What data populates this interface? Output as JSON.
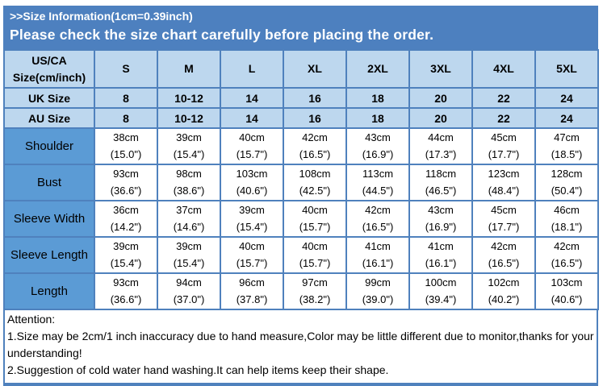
{
  "header": {
    "title": ">>Size Information(1cm=0.39inch)",
    "subtitle": "Please check the size chart carefully before placing the order."
  },
  "size_chart": {
    "corner_line1": "US/CA",
    "corner_line2": "Size(cm/inch)",
    "columns": [
      "S",
      "M",
      "L",
      "XL",
      "2XL",
      "3XL",
      "4XL",
      "5XL"
    ],
    "region_rows": [
      {
        "label": "UK Size",
        "values": [
          "8",
          "10-12",
          "14",
          "16",
          "18",
          "20",
          "22",
          "24"
        ]
      },
      {
        "label": "AU Size",
        "values": [
          "8",
          "10-12",
          "14",
          "16",
          "18",
          "20",
          "22",
          "24"
        ]
      }
    ],
    "measurement_rows": [
      {
        "label": "Shoulder",
        "cm": [
          "38cm",
          "39cm",
          "40cm",
          "42cm",
          "43cm",
          "44cm",
          "45cm",
          "47cm"
        ],
        "inch": [
          "(15.0\")",
          "(15.4\")",
          "(15.7\")",
          "(16.5\")",
          "(16.9\")",
          "(17.3\")",
          "(17.7\")",
          "(18.5\")"
        ]
      },
      {
        "label": "Bust",
        "cm": [
          "93cm",
          "98cm",
          "103cm",
          "108cm",
          "113cm",
          "118cm",
          "123cm",
          "128cm"
        ],
        "inch": [
          "(36.6\")",
          "(38.6\")",
          "(40.6\")",
          "(42.5\")",
          "(44.5\")",
          "(46.5\")",
          "(48.4\")",
          "(50.4\")"
        ]
      },
      {
        "label": "Sleeve Width",
        "cm": [
          "36cm",
          "37cm",
          "39cm",
          "40cm",
          "42cm",
          "43cm",
          "45cm",
          "46cm"
        ],
        "inch": [
          "(14.2\")",
          "(14.6\")",
          "(15.4\")",
          "(15.7\")",
          "(16.5\")",
          "(16.9\")",
          "(17.7\")",
          "(18.1\")"
        ]
      },
      {
        "label": "Sleeve Length",
        "cm": [
          "39cm",
          "39cm",
          "40cm",
          "40cm",
          "41cm",
          "41cm",
          "42cm",
          "42cm"
        ],
        "inch": [
          "(15.4\")",
          "(15.4\")",
          "(15.7\")",
          "(15.7\")",
          "(16.1\")",
          "(16.1\")",
          "(16.5\")",
          "(16.5\")"
        ]
      },
      {
        "label": "Length",
        "cm": [
          "93cm",
          "94cm",
          "96cm",
          "97cm",
          "99cm",
          "100cm",
          "102cm",
          "103cm"
        ],
        "inch": [
          "(36.6\")",
          "(37.0\")",
          "(37.8\")",
          "(38.2\")",
          "(39.0\")",
          "(39.4\")",
          "(40.2\")",
          "(40.6\")"
        ]
      }
    ]
  },
  "attention": {
    "heading": "Attention:",
    "notes": [
      "1.Size may be 2cm/1 inch inaccuracy due to hand measure,Color may be little different due to monitor,thanks for your understanding!",
      "2.Suggestion of cold water hand washing.It can help items keep their shape."
    ]
  },
  "colors": {
    "band_blue": "#4d80bf",
    "cell_light_blue": "#bdd7ee",
    "label_blue": "#5b9bd5",
    "border_blue": "#4f81bd"
  }
}
